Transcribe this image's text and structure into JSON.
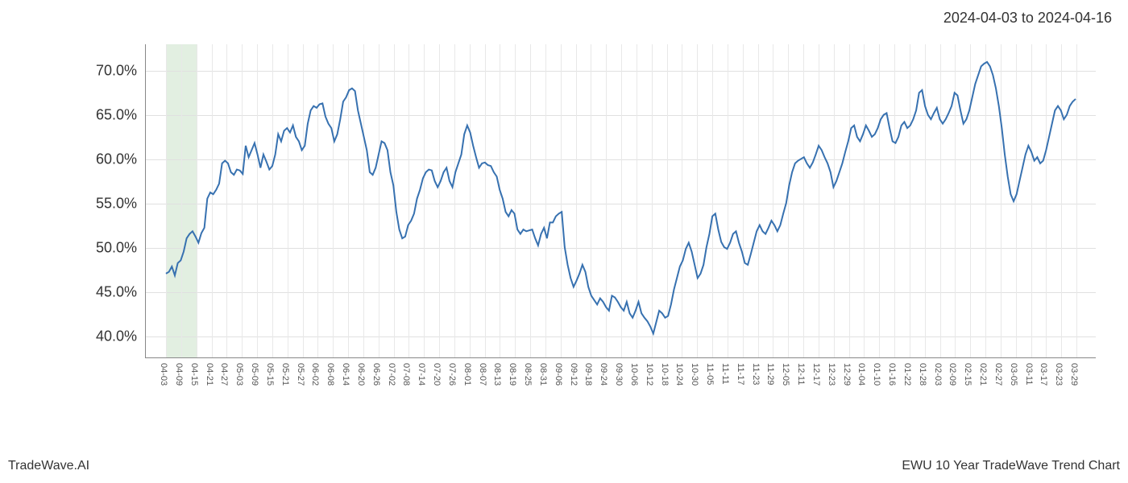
{
  "header": {
    "date_range": "2024-04-03 to 2024-04-16"
  },
  "footer": {
    "left": "TradeWave.AI",
    "right": "EWU 10 Year TradeWave Trend Chart"
  },
  "chart": {
    "type": "line",
    "background_color": "#ffffff",
    "grid_color": "#e0e0e0",
    "minor_grid_color": "#e8e8e8",
    "axis_color": "#888888",
    "line_color": "#3771b0",
    "line_width": 2,
    "highlight_color": "#d5e8d4",
    "y_axis": {
      "min": 37.5,
      "max": 73.0,
      "ticks": [
        40.0,
        45.0,
        50.0,
        55.0,
        60.0,
        65.0,
        70.0
      ],
      "tick_labels": [
        "40.0%",
        "45.0%",
        "50.0%",
        "55.0%",
        "60.0%",
        "65.0%",
        "70.0%"
      ],
      "label_fontsize": 18,
      "label_color": "#333333"
    },
    "x_axis": {
      "tick_labels": [
        "04-03",
        "04-09",
        "04-15",
        "04-21",
        "04-27",
        "05-03",
        "05-09",
        "05-15",
        "05-21",
        "05-27",
        "06-02",
        "06-08",
        "06-14",
        "06-20",
        "06-26",
        "07-02",
        "07-08",
        "07-14",
        "07-20",
        "07-26",
        "08-01",
        "08-07",
        "08-13",
        "08-19",
        "08-25",
        "08-31",
        "09-06",
        "09-12",
        "09-18",
        "09-24",
        "09-30",
        "10-06",
        "10-12",
        "10-18",
        "10-24",
        "10-30",
        "11-05",
        "11-11",
        "11-17",
        "11-23",
        "11-29",
        "12-05",
        "12-11",
        "12-17",
        "12-23",
        "12-29",
        "01-04",
        "01-10",
        "01-16",
        "01-22",
        "01-28",
        "02-03",
        "02-09",
        "02-15",
        "02-21",
        "02-27",
        "03-05",
        "03-11",
        "03-17",
        "03-23",
        "03-29"
      ],
      "label_fontsize": 11,
      "label_color": "#555555",
      "label_rotation": 90
    },
    "highlight_band": {
      "start_index": 0,
      "end_index": 2,
      "total_ticks": 61
    },
    "series": {
      "values": [
        47.0,
        47.2,
        47.8,
        46.8,
        48.2,
        48.5,
        49.5,
        51.0,
        51.5,
        51.8,
        51.2,
        50.5,
        51.6,
        52.2,
        55.5,
        56.2,
        56.0,
        56.5,
        57.2,
        59.5,
        59.8,
        59.5,
        58.5,
        58.2,
        58.8,
        58.7,
        58.3,
        61.5,
        60.2,
        61.0,
        61.8,
        60.5,
        59.0,
        60.5,
        59.7,
        58.8,
        59.2,
        60.5,
        62.8,
        62.0,
        63.2,
        63.5,
        63.0,
        63.8,
        62.5,
        62.0,
        61.0,
        61.5,
        64.0,
        65.5,
        66.0,
        65.8,
        66.2,
        66.3,
        64.8,
        64.0,
        63.5,
        62.0,
        62.8,
        64.5,
        66.5,
        67.0,
        67.8,
        68.0,
        67.7,
        65.5,
        64.0,
        62.5,
        61.0,
        58.5,
        58.2,
        59.0,
        60.5,
        62.0,
        61.8,
        61.0,
        58.5,
        57.0,
        54.0,
        52.0,
        51.0,
        51.2,
        52.5,
        53.0,
        53.8,
        55.5,
        56.5,
        57.8,
        58.5,
        58.8,
        58.7,
        57.5,
        56.8,
        57.5,
        58.5,
        59.0,
        57.5,
        56.8,
        58.5,
        59.5,
        60.5,
        62.8,
        63.8,
        63.0,
        61.5,
        60.2,
        59.0,
        59.5,
        59.6,
        59.3,
        59.2,
        58.5,
        58.0,
        56.5,
        55.5,
        54.0,
        53.5,
        54.2,
        53.8,
        52.0,
        51.5,
        52.0,
        51.8,
        51.9,
        52.0,
        51.0,
        50.2,
        51.5,
        52.2,
        51.0,
        52.8,
        52.8,
        53.5,
        53.8,
        54.0,
        50.0,
        48.0,
        46.5,
        45.5,
        46.2,
        47.0,
        48.0,
        47.2,
        45.5,
        44.5,
        44.0,
        43.5,
        44.2,
        43.8,
        43.2,
        42.8,
        44.5,
        44.3,
        43.8,
        43.2,
        42.8,
        43.8,
        42.5,
        42.0,
        42.8,
        43.8,
        42.5,
        42.0,
        41.6,
        41.0,
        40.2,
        41.5,
        42.8,
        42.5,
        42.0,
        42.2,
        43.5,
        45.2,
        46.5,
        47.8,
        48.5,
        49.8,
        50.5,
        49.5,
        48.0,
        46.5,
        47.0,
        48.0,
        50.0,
        51.5,
        53.5,
        53.8,
        52.0,
        50.6,
        50.0,
        49.8,
        50.5,
        51.5,
        51.8,
        50.5,
        49.5,
        48.2,
        48.0,
        49.2,
        50.5,
        51.8,
        52.5,
        51.8,
        51.5,
        52.2,
        53.0,
        52.5,
        51.8,
        52.5,
        53.8,
        55.0,
        57.0,
        58.5,
        59.5,
        59.8,
        60.0,
        60.2,
        59.5,
        59.0,
        59.6,
        60.5,
        61.5,
        61.0,
        60.2,
        59.5,
        58.5,
        56.8,
        57.5,
        58.5,
        59.5,
        60.8,
        62.0,
        63.5,
        63.8,
        62.5,
        62.0,
        62.8,
        63.8,
        63.2,
        62.5,
        62.8,
        63.5,
        64.5,
        65.0,
        65.2,
        63.5,
        62.0,
        61.8,
        62.5,
        63.8,
        64.2,
        63.5,
        63.8,
        64.5,
        65.5,
        67.5,
        67.8,
        66.0,
        65.0,
        64.5,
        65.2,
        65.8,
        64.5,
        64.0,
        64.5,
        65.2,
        66.0,
        67.5,
        67.2,
        65.5,
        64.0,
        64.5,
        65.5,
        67.0,
        68.5,
        69.5,
        70.5,
        70.8,
        71.0,
        70.5,
        69.5,
        68.0,
        66.0,
        63.5,
        60.5,
        58.0,
        56.0,
        55.2,
        56.0,
        57.5,
        59.0,
        60.5,
        61.5,
        60.8,
        59.8,
        60.2,
        59.5,
        59.8,
        61.0,
        62.5,
        64.0,
        65.5,
        66.0,
        65.5,
        64.5,
        65.0,
        66.0,
        66.5,
        66.8
      ]
    }
  }
}
